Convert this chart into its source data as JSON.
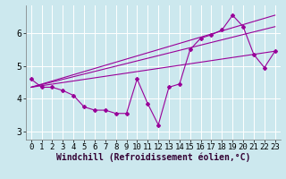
{
  "xlabel": "Windchill (Refroidissement éolien,°C)",
  "background_color": "#cce8ee",
  "line_color": "#990099",
  "grid_color": "#ffffff",
  "x_ticks": [
    0,
    1,
    2,
    3,
    4,
    5,
    6,
    7,
    8,
    9,
    10,
    11,
    12,
    13,
    14,
    15,
    16,
    17,
    18,
    19,
    20,
    21,
    22,
    23
  ],
  "y_ticks": [
    3,
    4,
    5,
    6
  ],
  "ylim": [
    2.75,
    6.85
  ],
  "xlim": [
    -0.5,
    23.5
  ],
  "series1_x": [
    0,
    1,
    2,
    3,
    4,
    5,
    6,
    7,
    8,
    9,
    10,
    11,
    12,
    13,
    14,
    15,
    16,
    17,
    18,
    19,
    20,
    21,
    22,
    23
  ],
  "series1_y": [
    4.6,
    4.35,
    4.35,
    4.25,
    4.1,
    3.75,
    3.65,
    3.65,
    3.55,
    3.55,
    4.6,
    3.85,
    3.2,
    4.35,
    4.45,
    5.5,
    5.85,
    5.95,
    6.1,
    6.55,
    6.2,
    5.35,
    4.95,
    5.45
  ],
  "line2_x": [
    0,
    23
  ],
  "line2_y": [
    4.35,
    6.2
  ],
  "line3_x": [
    0,
    23
  ],
  "line3_y": [
    4.35,
    6.55
  ],
  "line4_x": [
    0,
    23
  ],
  "line4_y": [
    4.35,
    5.45
  ],
  "tick_fontsize": 6.5,
  "xlabel_fontsize": 7.0
}
